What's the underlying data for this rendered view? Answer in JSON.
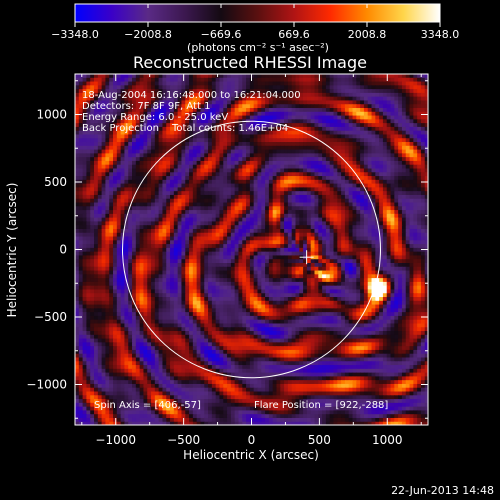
{
  "chart_data": {
    "type": "heatmap",
    "title": "Reconstructed RHESSI Image",
    "xlabel": "Heliocentric X (arcsec)",
    "ylabel": "Heliocentric Y (arcsec)",
    "xlim": [
      -1300,
      1300
    ],
    "ylim": [
      -1300,
      1300
    ],
    "x_ticks": [
      -1000,
      -500,
      0,
      500,
      1000
    ],
    "y_ticks": [
      1000,
      500,
      0,
      -500,
      -1000
    ],
    "x_tick_labels": [
      "−1000",
      "−500",
      "0",
      "500",
      "1000"
    ],
    "y_tick_labels": [
      "1000",
      "500",
      "0",
      "−500",
      "−1000"
    ],
    "colorbar": {
      "min": -3348.0,
      "max": 3348.0,
      "tick_labels": [
        "−3348.0",
        "−2008.8",
        "−669.6",
        "669.6",
        "2008.8",
        "3348.0"
      ],
      "unit_label": "(photons cm⁻² s⁻¹ asec⁻²)",
      "colors": [
        "#0000ff",
        "#3a00c8",
        "#5a2a86",
        "#3c1850",
        "#140a12",
        "#5a1010",
        "#b01414",
        "#ff2a00",
        "#ff8a00",
        "#ffd54a",
        "#ffffff"
      ]
    },
    "annotations": [
      "18-Aug-2004 16:16:48.000 to 16:21:04.000",
      "Detectors: 7F 8F 9F, Att 1",
      "Energy Range: 6.0 - 25.0 keV",
      "Back Projection",
      "Total counts: 1.46E+04"
    ],
    "spin_axis": "Spin Axis = [406,-57]",
    "flare_position": "Flare Position = [922,-288]",
    "solar_limb_radius_arcsec": 950,
    "spin_axis_xy": [
      406,
      -57
    ],
    "flare_xy": [
      922,
      -288
    ]
  },
  "footer": {
    "timestamp": "22-Jun-2013 14:48"
  }
}
